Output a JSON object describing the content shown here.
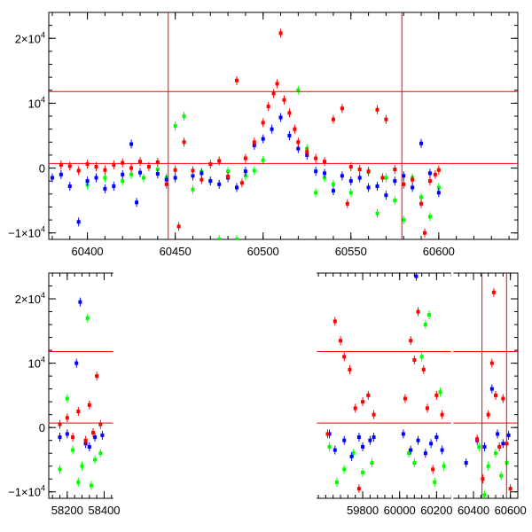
{
  "chart_data": [
    {
      "type": "scatter",
      "panel": "top",
      "title": "",
      "xlabel": "",
      "ylabel": "",
      "xlim": [
        60378,
        60645
      ],
      "ylim": [
        -11000,
        24000
      ],
      "x_ticks": [
        {
          "value": 60400,
          "label": "60400"
        },
        {
          "value": 60450,
          "label": "60450"
        },
        {
          "value": 60500,
          "label": "60500"
        },
        {
          "value": 60550,
          "label": "60550"
        },
        {
          "value": 60600,
          "label": "60600"
        }
      ],
      "y_ticks": [
        {
          "value": -10000,
          "label": "−1×10",
          "sup": "4"
        },
        {
          "value": 0,
          "label": "0",
          "sup": ""
        },
        {
          "value": 10000,
          "label": "10",
          "sup": "4"
        },
        {
          "value": 20000,
          "label": "2×10",
          "sup": "4"
        }
      ],
      "ref_lines": {
        "horizontal": [
          11800,
          700
        ],
        "vertical": [
          60446,
          60579
        ]
      },
      "series_colors": {
        "red": "#ff0000",
        "blue": "#0000ff",
        "green": "#00ff00"
      },
      "series": [
        {
          "color": "red",
          "points": [
            [
              60385,
              500
            ],
            [
              60390,
              300
            ],
            [
              60395,
              -400
            ],
            [
              60400,
              600
            ],
            [
              60405,
              200
            ],
            [
              60410,
              -300
            ],
            [
              60415,
              500
            ],
            [
              60420,
              800
            ],
            [
              60425,
              0
            ],
            [
              60430,
              1000
            ],
            [
              60435,
              200
            ],
            [
              60440,
              900
            ],
            [
              60445,
              -2500
            ],
            [
              60450,
              -300
            ],
            [
              60452,
              -9000
            ],
            [
              60455,
              4000
            ],
            [
              60460,
              -400
            ],
            [
              60465,
              -1800
            ],
            [
              60470,
              600
            ],
            [
              60475,
              1100
            ],
            [
              60480,
              -1300
            ],
            [
              60485,
              13500
            ],
            [
              60488,
              -2300
            ],
            [
              60490,
              1500
            ],
            [
              60495,
              4000
            ],
            [
              60500,
              7000
            ],
            [
              60503,
              9500
            ],
            [
              60506,
              11500
            ],
            [
              60508,
              13000
            ],
            [
              60510,
              20800
            ],
            [
              60512,
              10500
            ],
            [
              60515,
              8500
            ],
            [
              60518,
              6000
            ],
            [
              60520,
              4000
            ],
            [
              60525,
              2500
            ],
            [
              60530,
              1500
            ],
            [
              60535,
              1000
            ],
            [
              60540,
              7500
            ],
            [
              60545,
              9200
            ],
            [
              60548,
              -5500
            ],
            [
              60550,
              200
            ],
            [
              60555,
              -200
            ],
            [
              60560,
              -500
            ],
            [
              60565,
              9000
            ],
            [
              60568,
              -1500
            ],
            [
              60570,
              7500
            ],
            [
              60575,
              -200
            ],
            [
              60580,
              -2500
            ],
            [
              60585,
              -1800
            ],
            [
              60590,
              -5500
            ],
            [
              60592,
              -10000
            ],
            [
              60595,
              -2000
            ],
            [
              60598,
              -1000
            ],
            [
              60600,
              -300
            ]
          ]
        },
        {
          "color": "blue",
          "points": [
            [
              60380,
              -1500
            ],
            [
              60385,
              -1000
            ],
            [
              60390,
              -2800
            ],
            [
              60395,
              -8300
            ],
            [
              60400,
              -2000
            ],
            [
              60405,
              -1500
            ],
            [
              60410,
              -3200
            ],
            [
              60415,
              -2800
            ],
            [
              60420,
              -1000
            ],
            [
              60425,
              3700
            ],
            [
              60428,
              -5300
            ],
            [
              60430,
              -700
            ],
            [
              60440,
              -900
            ],
            [
              60445,
              -1800
            ],
            [
              60450,
              -1500
            ],
            [
              60460,
              -1200
            ],
            [
              60465,
              -800
            ],
            [
              60470,
              -2000
            ],
            [
              60475,
              -2500
            ],
            [
              60480,
              -1500
            ],
            [
              60485,
              -3000
            ],
            [
              60490,
              -500
            ],
            [
              60495,
              3500
            ],
            [
              60500,
              4500
            ],
            [
              60505,
              6000
            ],
            [
              60510,
              7800
            ],
            [
              60515,
              5000
            ],
            [
              60520,
              3000
            ],
            [
              60525,
              2000
            ],
            [
              60530,
              -500
            ],
            [
              60535,
              -800
            ],
            [
              60540,
              -3500
            ],
            [
              60545,
              -1200
            ],
            [
              60550,
              -2000
            ],
            [
              60555,
              -1500
            ],
            [
              60560,
              -3000
            ],
            [
              60565,
              -2800
            ],
            [
              60570,
              -4200
            ],
            [
              60575,
              -2000
            ],
            [
              60580,
              -1200
            ],
            [
              60585,
              -3000
            ],
            [
              60590,
              3800
            ],
            [
              60595,
              -800
            ],
            [
              60600,
              -3800
            ]
          ]
        },
        {
          "color": "green",
          "points": [
            [
              60400,
              -2600
            ],
            [
              60410,
              -1500
            ],
            [
              60420,
              -2000
            ],
            [
              60425,
              -1000
            ],
            [
              60432,
              -1500
            ],
            [
              60440,
              -200
            ],
            [
              60445,
              -1500
            ],
            [
              60450,
              6500
            ],
            [
              60455,
              8000
            ],
            [
              60460,
              -3300
            ],
            [
              60465,
              -600
            ],
            [
              60470,
              -2000
            ],
            [
              60475,
              -11000
            ],
            [
              60480,
              -500
            ],
            [
              60485,
              -11000
            ],
            [
              60490,
              -1200
            ],
            [
              60495,
              -400
            ],
            [
              60500,
              1200
            ],
            [
              60520,
              12000
            ],
            [
              60525,
              3000
            ],
            [
              60530,
              -3800
            ],
            [
              60535,
              -1500
            ],
            [
              60540,
              -2500
            ],
            [
              60550,
              -3800
            ],
            [
              60560,
              -600
            ],
            [
              60565,
              -7000
            ],
            [
              60570,
              -1500
            ],
            [
              60575,
              -5000
            ],
            [
              60580,
              -8000
            ],
            [
              60585,
              -1500
            ],
            [
              60590,
              -4500
            ],
            [
              60595,
              -7500
            ],
            [
              60600,
              -3000
            ]
          ]
        }
      ]
    },
    {
      "type": "scatter",
      "panel": "bottom",
      "title": "",
      "xlabel": "",
      "ylabel": "",
      "xlim": [
        58100,
        60640
      ],
      "ylim": [
        -11000,
        24000
      ],
      "x_ticks": [
        {
          "value": 58200,
          "label": "58200"
        },
        {
          "value": 58400,
          "label": "58400"
        },
        {
          "value": 59800,
          "label": "59800"
        },
        {
          "value": 60000,
          "label": "60000"
        },
        {
          "value": 60200,
          "label": "60200"
        },
        {
          "value": 60400,
          "label": "60400"
        },
        {
          "value": 60600,
          "label": "60600"
        }
      ],
      "y_ticks": [
        {
          "value": -10000,
          "label": "−1×10",
          "sup": "4"
        },
        {
          "value": 0,
          "label": "0",
          "sup": ""
        },
        {
          "value": 10000,
          "label": "10",
          "sup": "4"
        },
        {
          "value": 20000,
          "label": "2×10",
          "sup": "4"
        }
      ],
      "ref_lines": {
        "horizontal": [
          11800,
          700
        ],
        "vertical": [
          60446,
          60579
        ]
      },
      "series_colors": {
        "red": "#ff0000",
        "blue": "#0000ff",
        "green": "#00ff00"
      },
      "series": [
        {
          "color": "red",
          "points": [
            [
              58160,
              500
            ],
            [
              58200,
              1500
            ],
            [
              58230,
              -1500
            ],
            [
              58260,
              2500
            ],
            [
              58300,
              -2000
            ],
            [
              58320,
              3500
            ],
            [
              58340,
              -800
            ],
            [
              58360,
              8000
            ],
            [
              58380,
              500
            ],
            [
              59610,
              -1000
            ],
            [
              59650,
              16500
            ],
            [
              59680,
              13500
            ],
            [
              59700,
              11000
            ],
            [
              59730,
              9000
            ],
            [
              59760,
              3000
            ],
            [
              59780,
              -9500
            ],
            [
              59800,
              4000
            ],
            [
              59830,
              5000
            ],
            [
              59860,
              2000
            ],
            [
              60030,
              4500
            ],
            [
              60060,
              13500
            ],
            [
              60080,
              10500
            ],
            [
              60100,
              18000
            ],
            [
              60130,
              9000
            ],
            [
              60150,
              3000
            ],
            [
              60180,
              -6500
            ],
            [
              60200,
              5000
            ],
            [
              60230,
              2000
            ],
            [
              60420,
              -1800
            ],
            [
              60450,
              -8000
            ],
            [
              60480,
              2000
            ],
            [
              60500,
              10000
            ],
            [
              60510,
              21000
            ],
            [
              60520,
              5000
            ],
            [
              60540,
              -3000
            ],
            [
              60560,
              4500
            ],
            [
              60580,
              -2500
            ],
            [
              60600,
              -9500
            ]
          ]
        },
        {
          "color": "blue",
          "points": [
            [
              58160,
              -1500
            ],
            [
              58200,
              -1000
            ],
            [
              58250,
              10000
            ],
            [
              58270,
              19500
            ],
            [
              58300,
              -2500
            ],
            [
              58320,
              -3000
            ],
            [
              58350,
              -1500
            ],
            [
              58390,
              -1200
            ],
            [
              59620,
              -1000
            ],
            [
              59650,
              -3500
            ],
            [
              59700,
              -2000
            ],
            [
              59740,
              -4500
            ],
            [
              59780,
              -1500
            ],
            [
              59800,
              -3000
            ],
            [
              59840,
              -2000
            ],
            [
              59860,
              -1500
            ],
            [
              60020,
              -1000
            ],
            [
              60060,
              -3500
            ],
            [
              60090,
              23500
            ],
            [
              60100,
              -2000
            ],
            [
              60140,
              -4000
            ],
            [
              60170,
              -2500
            ],
            [
              60200,
              -1500
            ],
            [
              60230,
              -3500
            ],
            [
              60360,
              -5500
            ],
            [
              60420,
              -2000
            ],
            [
              60460,
              -3000
            ],
            [
              60500,
              6000
            ],
            [
              60530,
              -1000
            ],
            [
              60560,
              -2500
            ],
            [
              60590,
              -1200
            ]
          ]
        },
        {
          "color": "green",
          "points": [
            [
              58160,
              -6500
            ],
            [
              58200,
              4500
            ],
            [
              58230,
              -3500
            ],
            [
              58260,
              -8500
            ],
            [
              58280,
              -6000
            ],
            [
              58310,
              17000
            ],
            [
              58330,
              -9000
            ],
            [
              58350,
              -5000
            ],
            [
              58380,
              -4000
            ],
            [
              59620,
              -3000
            ],
            [
              59660,
              -8500
            ],
            [
              59700,
              -6500
            ],
            [
              59750,
              -4000
            ],
            [
              59800,
              -7000
            ],
            [
              59850,
              -5500
            ],
            [
              60050,
              -4000
            ],
            [
              60080,
              -5500
            ],
            [
              60120,
              11000
            ],
            [
              60140,
              16000
            ],
            [
              60160,
              17500
            ],
            [
              60190,
              -8500
            ],
            [
              60220,
              5500
            ],
            [
              60240,
              -6000
            ],
            [
              60430,
              -3000
            ],
            [
              60460,
              -10500
            ],
            [
              60480,
              -6000
            ],
            [
              60520,
              -4000
            ],
            [
              60550,
              -7500
            ],
            [
              60580,
              -5500
            ]
          ]
        }
      ],
      "gaps": [
        [
          58420,
          59580
        ],
        [
          60250,
          60320
        ]
      ]
    }
  ]
}
